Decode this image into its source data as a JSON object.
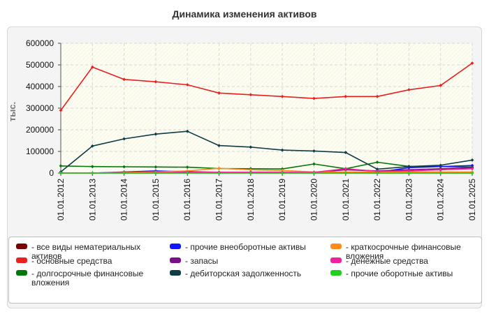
{
  "chart_data": {
    "type": "line",
    "title": "Динамика изменения активов",
    "ylabel": "тыс.",
    "xlabel": "",
    "ylim": [
      0,
      600000
    ],
    "yticks": [
      0,
      100000,
      200000,
      300000,
      400000,
      500000,
      600000
    ],
    "grid": true,
    "legend_position": "bottom",
    "categories": [
      "01.01.2012",
      "01.01.2013",
      "01.01.2014",
      "01.01.2015",
      "01.01.2016",
      "01.01.2017",
      "01.01.2018",
      "01.01.2019",
      "01.01.2020",
      "01.01.2021",
      "01.01.2022",
      "01.01.2023",
      "01.01.2024",
      "01.01.2025"
    ],
    "series": [
      {
        "name": "все виды нематериальных активов",
        "color": "#7a0000",
        "values": [
          0,
          0,
          0,
          0,
          0,
          0,
          0,
          0,
          0,
          0,
          0,
          0,
          0,
          0
        ]
      },
      {
        "name": "основные средства",
        "color": "#e8201f",
        "values": [
          290000,
          490000,
          433000,
          422000,
          408000,
          370000,
          362000,
          354000,
          345000,
          354000,
          354000,
          385000,
          405000,
          508000
        ]
      },
      {
        "name": "долгосрочные финансовые вложения",
        "color": "#00770a",
        "values": [
          33000,
          30000,
          29000,
          28000,
          27000,
          21000,
          20000,
          19000,
          42000,
          20000,
          50000,
          31000,
          30000,
          28000
        ]
      },
      {
        "name": "прочие внеоборотные активы",
        "color": "#1414ff",
        "values": [
          0,
          0,
          5000,
          10000,
          6000,
          3000,
          4000,
          2000,
          2000,
          3000,
          3000,
          25000,
          30000,
          35000
        ]
      },
      {
        "name": "запасы",
        "color": "#7a0f8a",
        "values": [
          0,
          0,
          2000,
          4000,
          5000,
          4000,
          4000,
          3000,
          3000,
          15000,
          10000,
          15000,
          20000,
          25000
        ]
      },
      {
        "name": "дебиторская задолженность",
        "color": "#0f3c46",
        "values": [
          5000,
          125000,
          158000,
          180000,
          193000,
          127000,
          120000,
          106000,
          102000,
          95000,
          18000,
          30000,
          36000,
          60000
        ]
      },
      {
        "name": "краткосрочные финансовые вложения",
        "color": "#ff8c1a",
        "values": [
          0,
          0,
          3000,
          5000,
          10000,
          22000,
          15000,
          12000,
          5000,
          5000,
          5000,
          5000,
          5000,
          5000
        ]
      },
      {
        "name": "денежные средства",
        "color": "#f0209a",
        "values": [
          0,
          0,
          1000,
          2000,
          3000,
          4000,
          4000,
          3000,
          3000,
          20000,
          8000,
          10000,
          15000,
          20000
        ]
      },
      {
        "name": "прочие оборотные активы",
        "color": "#20d020",
        "values": [
          0,
          0,
          0,
          0,
          0,
          0,
          0,
          0,
          0,
          0,
          0,
          0,
          0,
          0
        ]
      }
    ]
  }
}
